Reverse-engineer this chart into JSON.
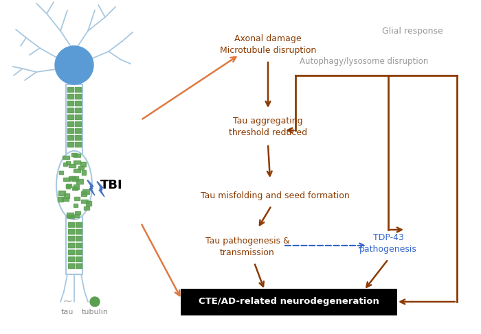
{
  "bg_color": "#ffffff",
  "brown": "#8B3A00",
  "orange": "#E07840",
  "gray": "#999999",
  "blue_tdp": "#3366CC",
  "blue_neuron": "#5B9BD5",
  "dendrite_color": "#a8c8e0",
  "green_tau": "#5AA050",
  "figsize": [
    7.0,
    4.87
  ],
  "dpi": 100,
  "axonal_text": "Axonal damage\nMicrotubule disruption",
  "glial_text": "Glial response",
  "autophagy_text": "Autophagy/lysosome disruption",
  "tau_agg_text": "Tau aggregating\nthreshold reduced",
  "tau_mis_text": "Tau misfolding and seed formation",
  "tau_path_text": "Tau pathogenesis &\ntransmission",
  "tdp43_text": "TDP-43\npathogenesis",
  "cte_text": "CTE/AD-related neurodegeneration",
  "tbi_text": "TBI",
  "tau_legend": "tau",
  "tubulin_legend": "tubulin"
}
